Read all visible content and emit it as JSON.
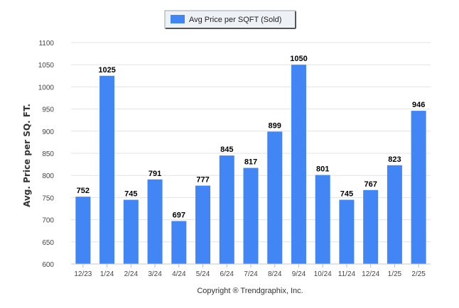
{
  "chart_data": {
    "type": "bar",
    "categories": [
      "12/23",
      "1/24",
      "2/24",
      "3/24",
      "4/24",
      "5/24",
      "6/24",
      "7/24",
      "8/24",
      "9/24",
      "10/24",
      "11/24",
      "12/24",
      "1/25",
      "2/25"
    ],
    "series": [
      {
        "name": "Avg Price per SQFT (Sold)",
        "values": [
          752,
          1025,
          745,
          791,
          697,
          777,
          845,
          817,
          899,
          1050,
          801,
          745,
          767,
          823,
          946
        ]
      }
    ],
    "xlabel": "",
    "ylabel": "Avg. Price per SQ. FT.",
    "ylim": [
      600,
      1100
    ],
    "yticks": [
      600,
      650,
      700,
      750,
      800,
      850,
      900,
      950,
      1000,
      1050,
      1100
    ],
    "grid": true,
    "legend": "top-center",
    "data_labels": true,
    "bar_color": "#4285f4"
  },
  "credit": "Copyright ® Trendgraphix, Inc."
}
